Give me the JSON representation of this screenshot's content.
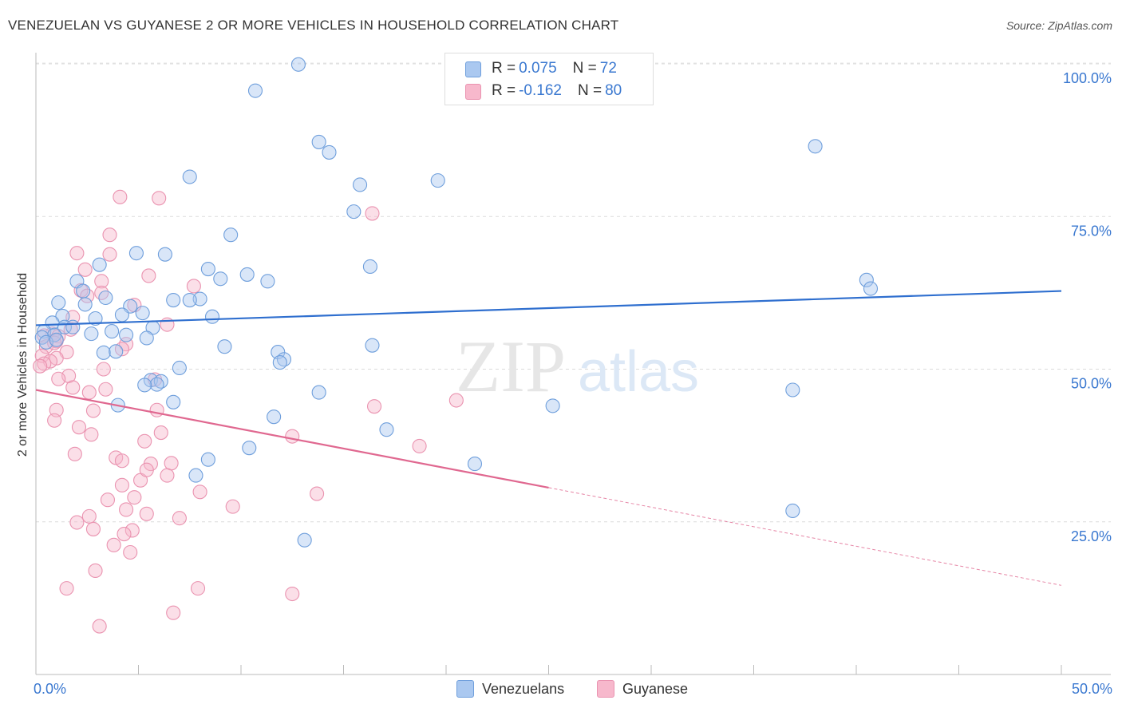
{
  "header": {
    "title": "VENEZUELAN VS GUYANESE 2 OR MORE VEHICLES IN HOUSEHOLD CORRELATION CHART",
    "source": "Source: ZipAtlas.com"
  },
  "legend": {
    "venezuelans": {
      "r_label": "R = ",
      "r_value": "0.075",
      "n_label": "N = ",
      "n_value": "72"
    },
    "guyanese": {
      "r_label": "R = ",
      "r_value": "-0.162",
      "n_label": "N = ",
      "n_value": "80"
    }
  },
  "watermark": {
    "zip": "ZIP",
    "atlas": "atlas"
  },
  "chart_data": {
    "type": "scatter",
    "xlabel": "",
    "ylabel": "2 or more Vehicles in Household",
    "xlim": [
      0,
      50
    ],
    "ylim": [
      0,
      100
    ],
    "x_tick_labels": [
      "0.0%",
      "50.0%"
    ],
    "y_tick_labels": [
      "100.0%",
      "75.0%",
      "50.0%",
      "25.0%"
    ],
    "y_ticks": [
      100,
      75,
      50,
      25
    ],
    "grid": true,
    "legend_position": "top-center and bottom-center",
    "colors": {
      "venezuelans_fill": "#aac8f0",
      "venezuelans_stroke": "#6f9fdc",
      "venezuelans_line": "#2f6fcf",
      "guyanese_fill": "#f7b8cc",
      "guyanese_stroke": "#ea93b0",
      "guyanese_line": "#e06890"
    },
    "series": [
      {
        "name": "Venezuelans",
        "trend": {
          "x": [
            0,
            50
          ],
          "y": [
            57.2,
            62.8
          ],
          "dashed_from": null
        },
        "points": [
          [
            12.8,
            99.9
          ],
          [
            10.7,
            95.6
          ],
          [
            13.8,
            87.2
          ],
          [
            14.3,
            85.5
          ],
          [
            38.0,
            86.5
          ],
          [
            15.8,
            80.2
          ],
          [
            19.6,
            80.9
          ],
          [
            7.5,
            81.5
          ],
          [
            15.5,
            75.8
          ],
          [
            9.5,
            72.0
          ],
          [
            4.9,
            69.0
          ],
          [
            6.3,
            68.8
          ],
          [
            3.1,
            67.1
          ],
          [
            16.3,
            66.8
          ],
          [
            8.4,
            66.4
          ],
          [
            10.3,
            65.5
          ],
          [
            9.0,
            64.8
          ],
          [
            11.3,
            64.4
          ],
          [
            40.5,
            64.6
          ],
          [
            40.7,
            63.2
          ],
          [
            2.0,
            64.4
          ],
          [
            2.3,
            62.8
          ],
          [
            3.4,
            61.7
          ],
          [
            8.0,
            61.5
          ],
          [
            6.7,
            61.3
          ],
          [
            7.5,
            61.3
          ],
          [
            1.1,
            60.9
          ],
          [
            2.4,
            60.6
          ],
          [
            4.6,
            60.3
          ],
          [
            5.2,
            59.2
          ],
          [
            4.2,
            58.9
          ],
          [
            8.6,
            58.6
          ],
          [
            1.3,
            58.7
          ],
          [
            2.9,
            58.3
          ],
          [
            0.8,
            57.6
          ],
          [
            1.4,
            56.9
          ],
          [
            1.8,
            56.9
          ],
          [
            5.7,
            56.8
          ],
          [
            0.4,
            56.2
          ],
          [
            0.9,
            55.6
          ],
          [
            3.7,
            56.2
          ],
          [
            2.7,
            55.8
          ],
          [
            4.4,
            55.6
          ],
          [
            5.4,
            55.1
          ],
          [
            0.3,
            55.2
          ],
          [
            0.5,
            54.4
          ],
          [
            1.0,
            54.8
          ],
          [
            9.2,
            53.7
          ],
          [
            3.3,
            52.7
          ],
          [
            3.9,
            52.9
          ],
          [
            11.8,
            52.8
          ],
          [
            12.1,
            51.6
          ],
          [
            16.4,
            53.9
          ],
          [
            11.9,
            51.1
          ],
          [
            7.0,
            50.2
          ],
          [
            5.6,
            48.2
          ],
          [
            6.1,
            48.0
          ],
          [
            5.9,
            47.5
          ],
          [
            5.3,
            47.4
          ],
          [
            13.8,
            46.2
          ],
          [
            36.9,
            46.6
          ],
          [
            4.0,
            44.1
          ],
          [
            6.7,
            44.6
          ],
          [
            25.2,
            44.0
          ],
          [
            11.6,
            42.2
          ],
          [
            17.1,
            40.1
          ],
          [
            10.4,
            37.1
          ],
          [
            8.4,
            35.2
          ],
          [
            21.4,
            34.5
          ],
          [
            7.8,
            32.6
          ],
          [
            36.9,
            26.8
          ],
          [
            13.1,
            22.0
          ]
        ]
      },
      {
        "name": "Guyanese",
        "trend": {
          "x": [
            0,
            50
          ],
          "y": [
            46.6,
            14.6
          ],
          "dashed_from": 25.0
        },
        "points": [
          [
            4.1,
            78.2
          ],
          [
            6.0,
            78.0
          ],
          [
            16.4,
            75.5
          ],
          [
            3.6,
            72.0
          ],
          [
            2.0,
            69.0
          ],
          [
            3.6,
            68.8
          ],
          [
            2.4,
            66.3
          ],
          [
            5.5,
            65.3
          ],
          [
            3.2,
            64.4
          ],
          [
            7.7,
            63.6
          ],
          [
            2.2,
            62.9
          ],
          [
            2.5,
            62.0
          ],
          [
            4.8,
            60.5
          ],
          [
            3.2,
            62.5
          ],
          [
            1.8,
            58.5
          ],
          [
            6.4,
            57.3
          ],
          [
            1.7,
            56.5
          ],
          [
            0.8,
            55.8
          ],
          [
            1.1,
            55.4
          ],
          [
            0.4,
            55.5
          ],
          [
            1.0,
            54.6
          ],
          [
            4.4,
            54.1
          ],
          [
            0.5,
            53.7
          ],
          [
            0.9,
            54.3
          ],
          [
            4.2,
            53.3
          ],
          [
            1.5,
            52.8
          ],
          [
            0.3,
            52.2
          ],
          [
            1.0,
            51.8
          ],
          [
            0.7,
            51.3
          ],
          [
            0.4,
            50.9
          ],
          [
            0.2,
            50.5
          ],
          [
            3.3,
            50.0
          ],
          [
            1.6,
            48.9
          ],
          [
            5.8,
            48.3
          ],
          [
            1.1,
            48.4
          ],
          [
            1.8,
            47.0
          ],
          [
            3.4,
            46.7
          ],
          [
            2.6,
            46.2
          ],
          [
            20.5,
            44.9
          ],
          [
            16.5,
            43.9
          ],
          [
            5.9,
            43.3
          ],
          [
            1.0,
            43.3
          ],
          [
            2.8,
            43.2
          ],
          [
            0.9,
            41.6
          ],
          [
            2.1,
            40.5
          ],
          [
            6.1,
            39.6
          ],
          [
            2.7,
            39.3
          ],
          [
            12.5,
            39.0
          ],
          [
            5.3,
            38.2
          ],
          [
            18.7,
            37.4
          ],
          [
            1.9,
            36.1
          ],
          [
            3.9,
            35.5
          ],
          [
            4.2,
            35.0
          ],
          [
            5.6,
            34.5
          ],
          [
            6.6,
            34.6
          ],
          [
            6.4,
            32.6
          ],
          [
            5.1,
            31.8
          ],
          [
            8.0,
            29.9
          ],
          [
            13.7,
            29.6
          ],
          [
            3.5,
            28.6
          ],
          [
            9.6,
            27.5
          ],
          [
            4.4,
            27.0
          ],
          [
            5.4,
            26.3
          ],
          [
            2.6,
            25.9
          ],
          [
            7.0,
            25.6
          ],
          [
            2.0,
            24.9
          ],
          [
            4.7,
            23.6
          ],
          [
            2.8,
            23.8
          ],
          [
            4.3,
            23.0
          ],
          [
            3.8,
            21.2
          ],
          [
            4.6,
            20.0
          ],
          [
            2.9,
            17.0
          ],
          [
            1.5,
            14.1
          ],
          [
            7.9,
            14.1
          ],
          [
            12.5,
            13.2
          ],
          [
            6.7,
            10.1
          ],
          [
            3.1,
            7.9
          ],
          [
            4.8,
            29.0
          ],
          [
            5.4,
            33.5
          ],
          [
            4.2,
            31.0
          ]
        ]
      }
    ]
  }
}
